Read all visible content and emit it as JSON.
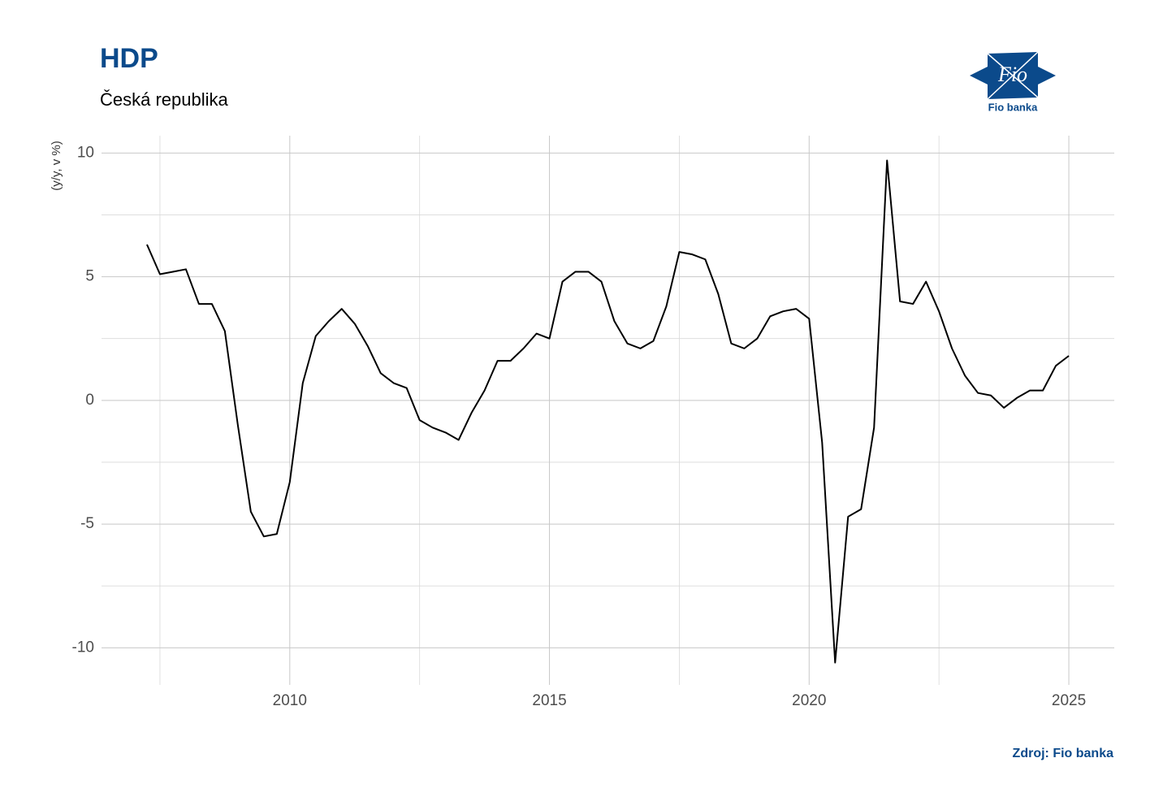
{
  "chart_data": {
    "type": "line",
    "title": "HDP",
    "subtitle": "Česká republika",
    "y_label": "(y/y, v %)",
    "source": "Zdroj: Fio banka",
    "logo": {
      "mark": "Fio",
      "name": "Fio banka"
    },
    "x": [
      2007.25,
      2007.5,
      2007.75,
      2008,
      2008.25,
      2008.5,
      2008.75,
      2009,
      2009.25,
      2009.5,
      2009.75,
      2010,
      2010.25,
      2010.5,
      2010.75,
      2011,
      2011.25,
      2011.5,
      2011.75,
      2012,
      2012.25,
      2012.5,
      2012.75,
      2013,
      2013.25,
      2013.5,
      2013.75,
      2014,
      2014.25,
      2014.5,
      2014.75,
      2015,
      2015.25,
      2015.5,
      2015.75,
      2016,
      2016.25,
      2016.5,
      2016.75,
      2017,
      2017.25,
      2017.5,
      2017.75,
      2018,
      2018.25,
      2018.5,
      2018.75,
      2019,
      2019.25,
      2019.5,
      2019.75,
      2020,
      2020.25,
      2020.5,
      2020.75,
      2021,
      2021.25,
      2021.5,
      2021.75,
      2022,
      2022.25,
      2022.5,
      2022.75,
      2023,
      2023.25,
      2023.5,
      2023.75,
      2024,
      2024.25,
      2024.5,
      2024.75,
      2025
    ],
    "series": [
      {
        "name": "HDP",
        "color": "#000000",
        "values": [
          6.3,
          5.1,
          5.2,
          5.3,
          3.9,
          3.9,
          2.8,
          -1.0,
          -4.5,
          -5.5,
          -5.4,
          -3.3,
          0.7,
          2.6,
          3.2,
          3.7,
          3.1,
          2.2,
          1.1,
          0.7,
          0.5,
          -0.8,
          -1.1,
          -1.3,
          -1.6,
          -0.5,
          0.4,
          1.6,
          1.6,
          2.1,
          2.7,
          2.5,
          4.8,
          5.2,
          5.2,
          4.8,
          3.2,
          2.3,
          2.1,
          2.4,
          3.8,
          6.0,
          5.9,
          5.7,
          4.3,
          2.3,
          2.1,
          2.5,
          3.4,
          3.6,
          3.7,
          3.3,
          -1.7,
          -10.6,
          -4.7,
          -4.4,
          -1.1,
          9.7,
          4.0,
          3.9,
          4.8,
          3.6,
          2.1,
          1.0,
          0.3,
          0.2,
          -0.3,
          0.1,
          0.4,
          0.4,
          1.4,
          1.8
        ]
      }
    ],
    "xlim": [
      2006.375,
      2025.875
    ],
    "xticks": [
      2010,
      2015,
      2020,
      2025
    ],
    "ylim": [
      -11.5,
      10.7
    ],
    "yticks": [
      -10,
      -5,
      0,
      5,
      10
    ],
    "grid": true
  }
}
